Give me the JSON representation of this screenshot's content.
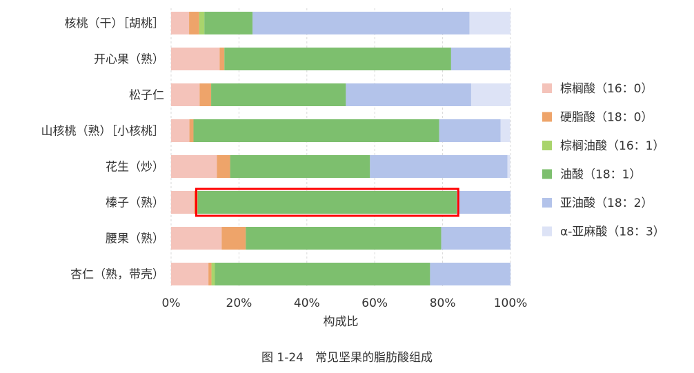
{
  "chart_data": {
    "type": "bar",
    "orientation": "horizontal",
    "stacked": true,
    "caption": "图 1-24　常见坚果的脂肪酸组成",
    "xlabel": "构成比",
    "xlim": [
      0,
      100
    ],
    "x_ticks": [
      "0%",
      "20%",
      "40%",
      "60%",
      "80%",
      "100%"
    ],
    "grid": "vertical dashed",
    "legend_position": "right",
    "categories": [
      "核桃（干）［胡桃］",
      "开心果（熟）",
      "松子仁",
      "山核桃（熟）［小核桃］",
      "花生（炒）",
      "榛子（熟）",
      "腰果（熟）",
      "杏仁（熟，带壳）"
    ],
    "series": [
      {
        "name": "棕榈酸（16：0）",
        "color": "#f4c3ba",
        "values": [
          5.3,
          14.3,
          8.4,
          5.4,
          13.5,
          6.8,
          14.9,
          11.0
        ]
      },
      {
        "name": "硬脂酸（18：0）",
        "color": "#eea46a",
        "values": [
          3.0,
          1.4,
          3.4,
          1.2,
          3.9,
          1.0,
          7.1,
          0.9
        ]
      },
      {
        "name": "棕榈油酸（16：1）",
        "color": "#a9d46c",
        "values": [
          1.5,
          0,
          0,
          0,
          0,
          0,
          0,
          1.0
        ]
      },
      {
        "name": "油酸（18：1）",
        "color": "#7dbf6e",
        "values": [
          14.2,
          66.8,
          39.7,
          72.4,
          41.2,
          76.4,
          57.6,
          63.4
        ]
      },
      {
        "name": "亚油酸（18：2）",
        "color": "#b3c3ea",
        "values": [
          63.9,
          17.4,
          36.9,
          18.1,
          40.5,
          15.8,
          20.4,
          23.7
        ]
      },
      {
        "name": "α-亚麻酸（18：3）",
        "color": "#dde3f6",
        "values": [
          12.1,
          0.1,
          11.6,
          2.8,
          0.8,
          0,
          0,
          0
        ]
      }
    ],
    "highlight": {
      "category": "榛子（熟）",
      "series": "油酸（18：1）",
      "color": "#ff0000"
    }
  }
}
